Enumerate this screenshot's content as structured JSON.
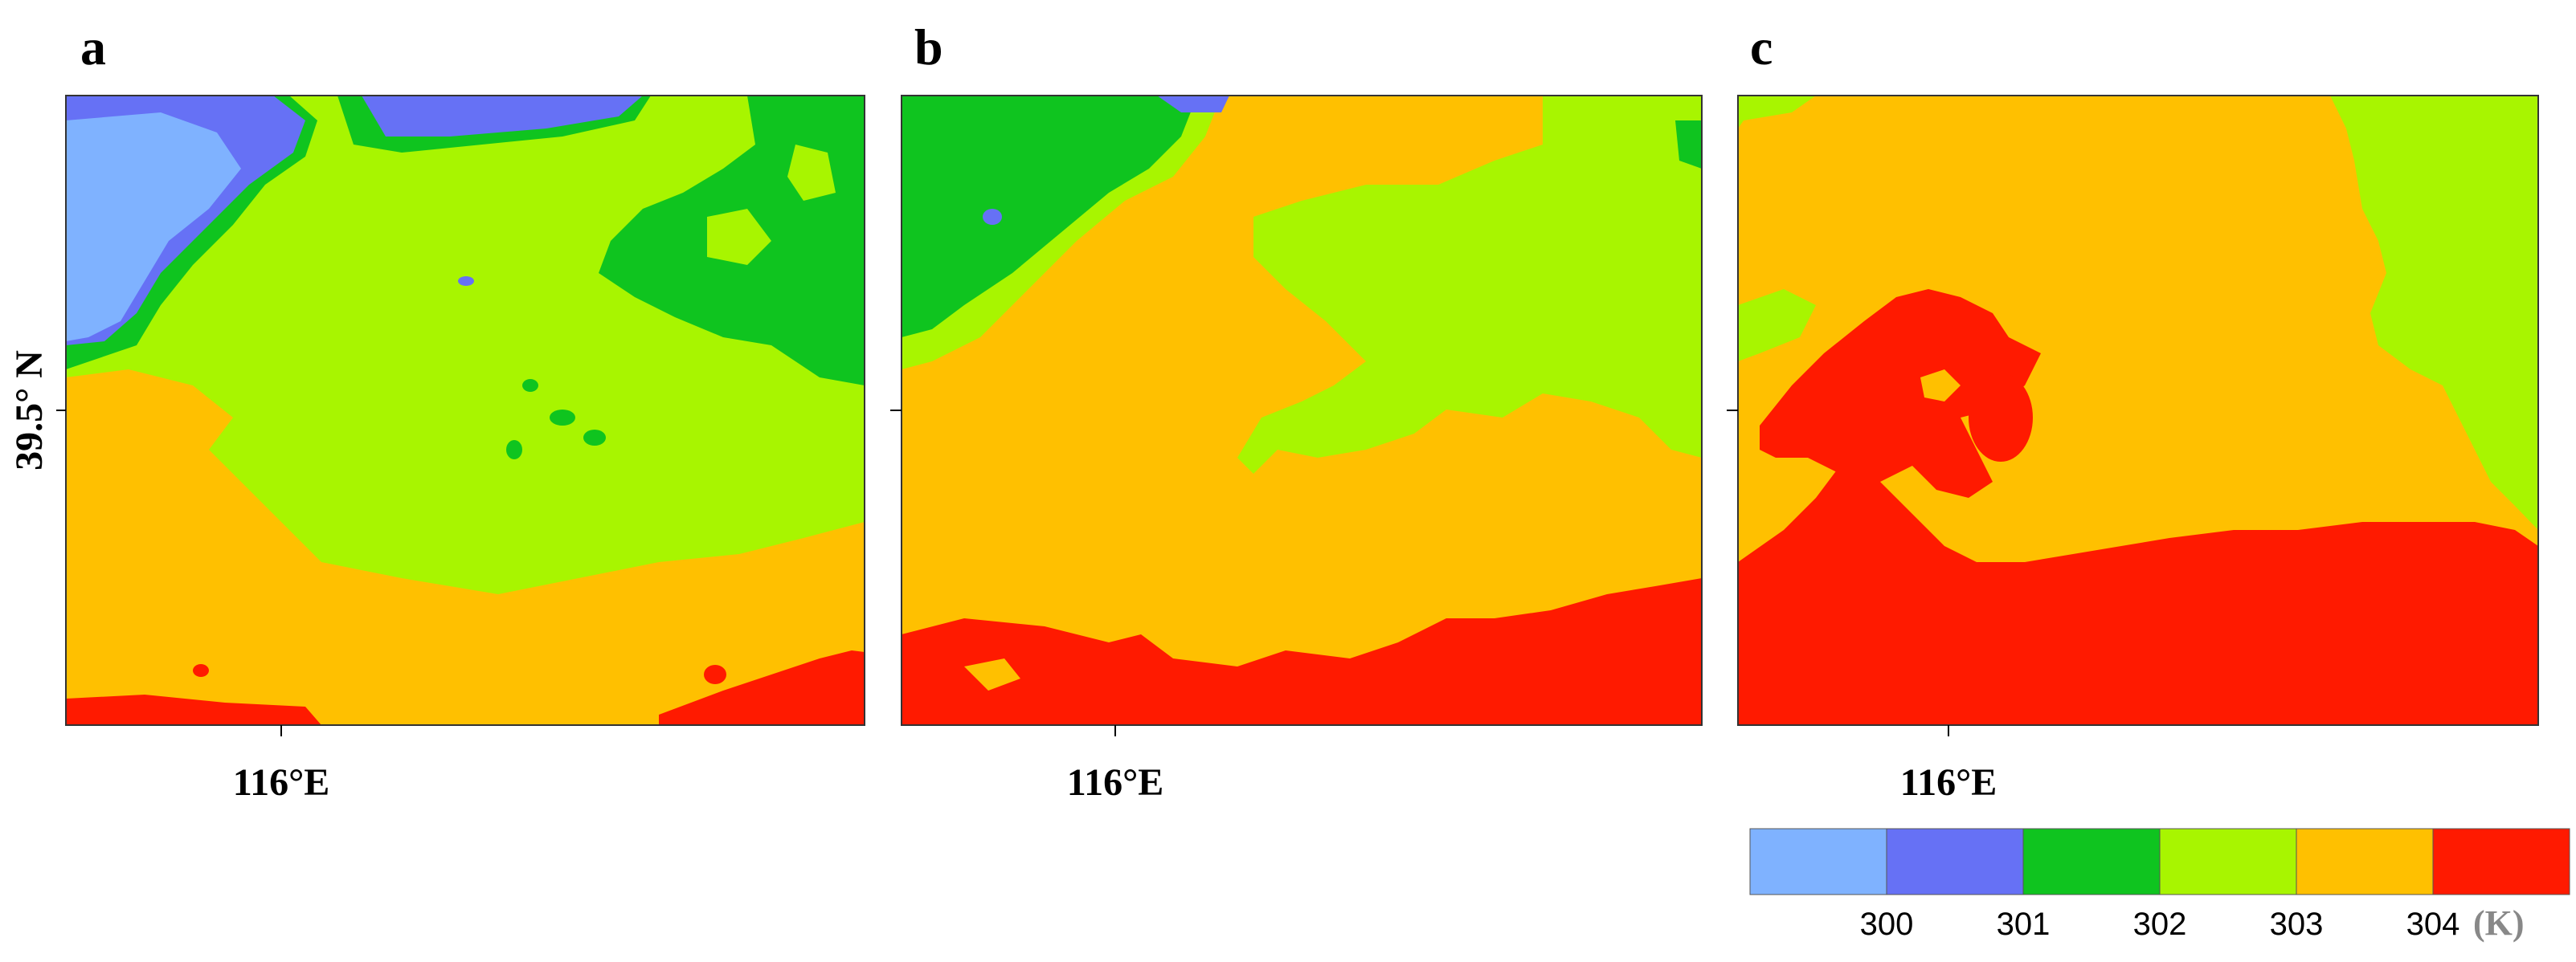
{
  "panels": [
    {
      "letter": "a",
      "lon_label": "116°E"
    },
    {
      "letter": "b",
      "lon_label": "116°E"
    },
    {
      "letter": "c",
      "lon_label": "116°E"
    }
  ],
  "lat_label": "39.5° N",
  "colorbar": {
    "unit": "(K)",
    "ticks": [
      "300",
      "301",
      "302",
      "303",
      "304"
    ],
    "colors": [
      "#7fb2ff",
      "#6671f5",
      "#0fc41f",
      "#a8f500",
      "#ffc000",
      "#ff1a00"
    ]
  }
}
